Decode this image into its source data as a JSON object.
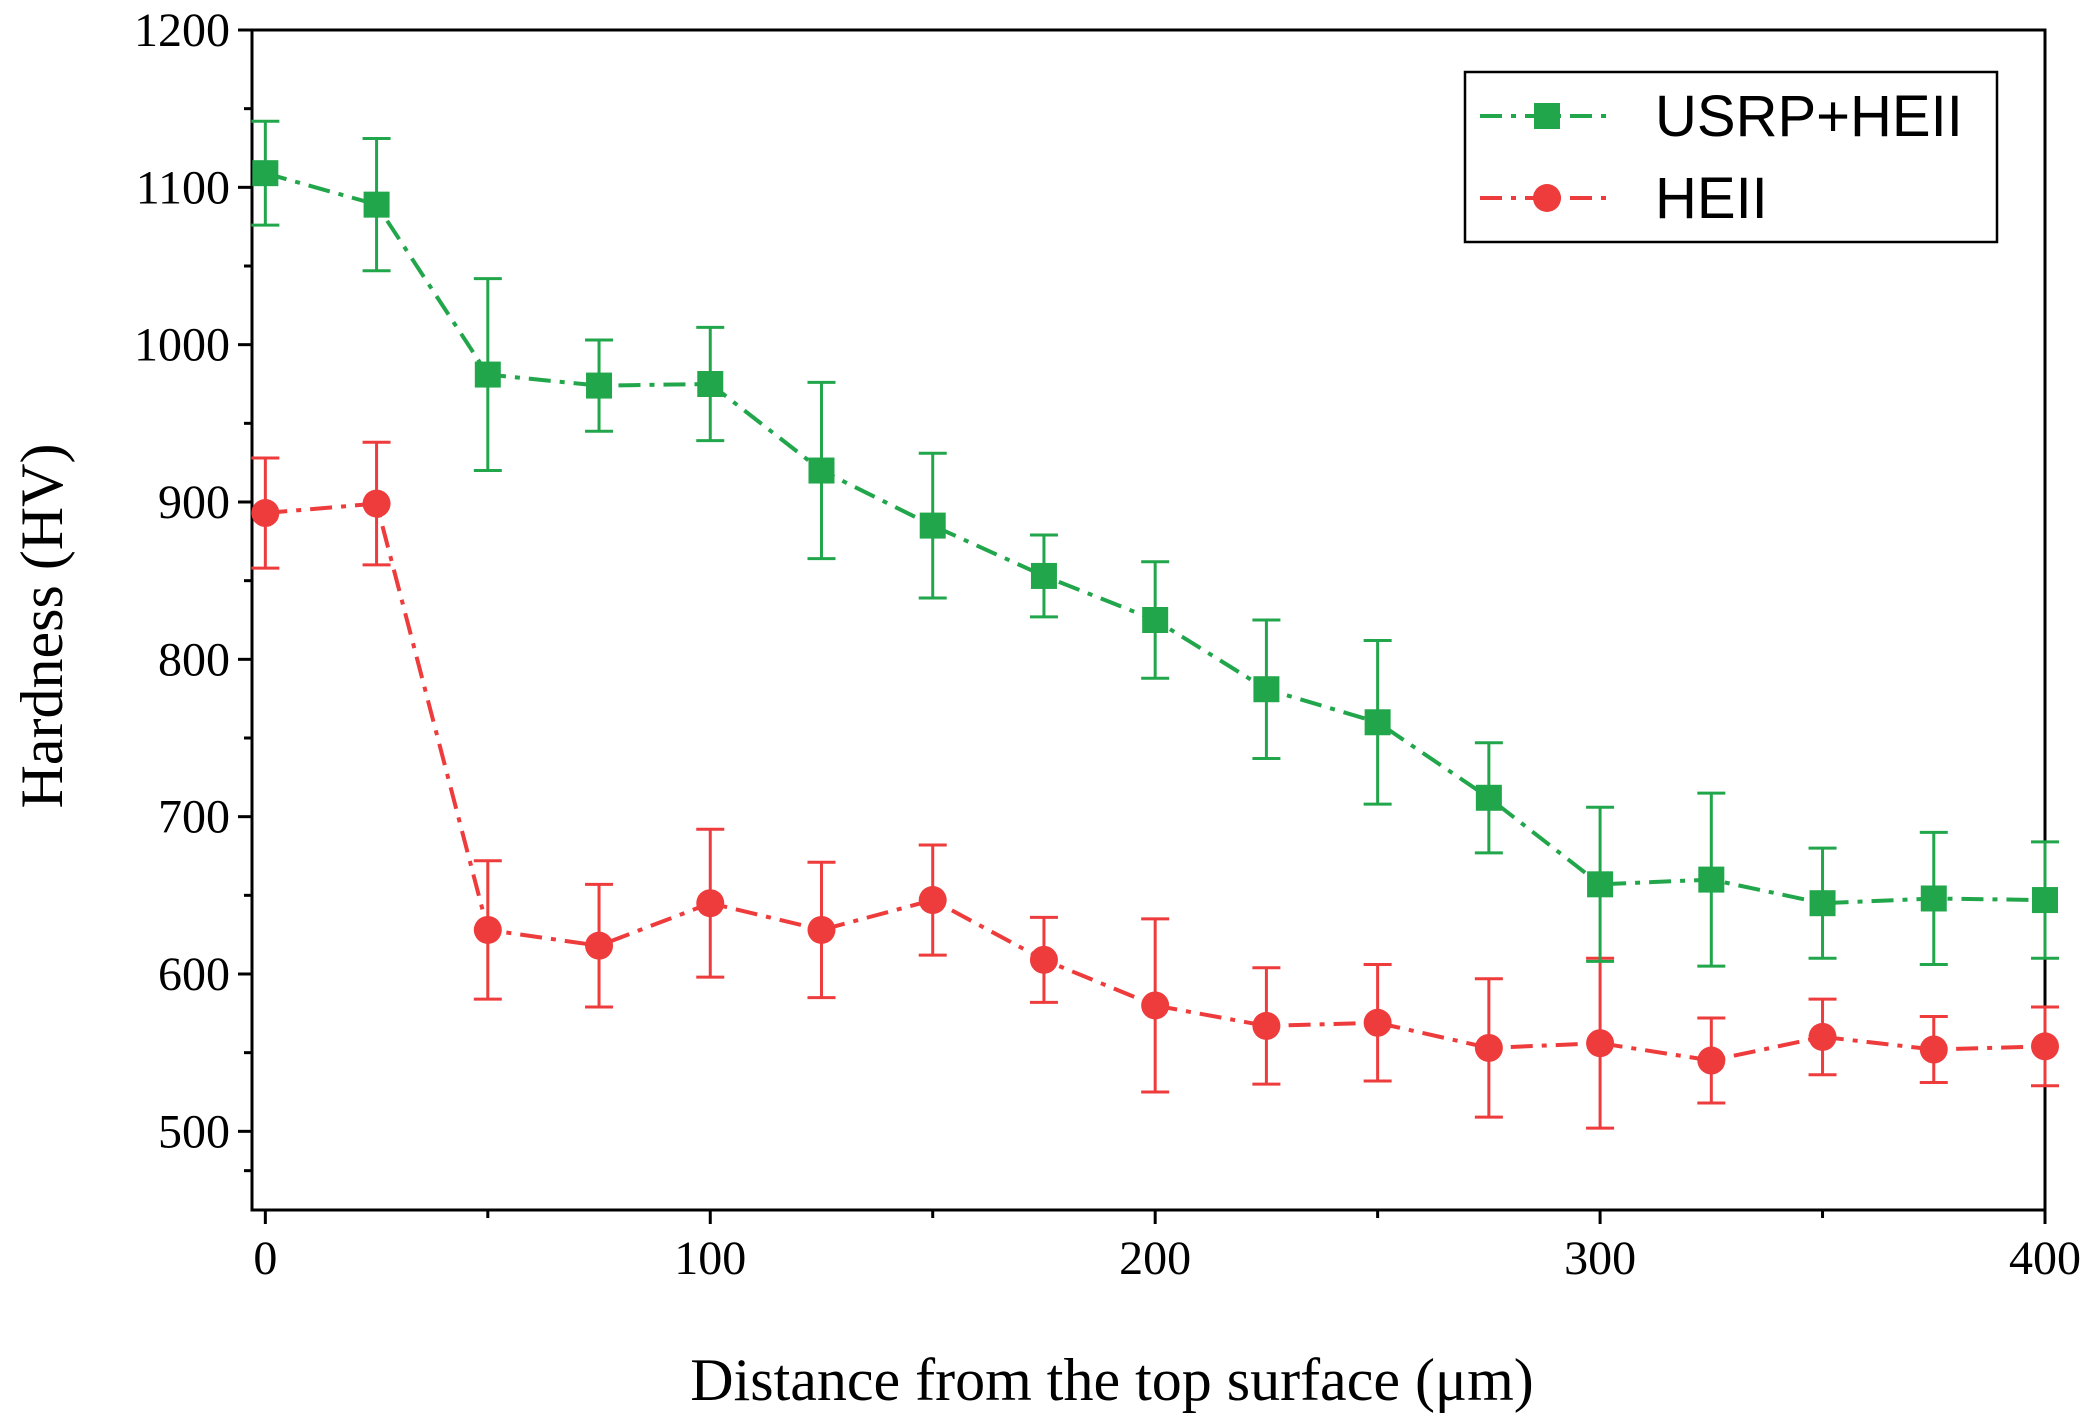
{
  "chart_data": {
    "type": "line",
    "title": "",
    "xlabel": "Distance from the top surface (μm)",
    "ylabel": "Hardness (HV)",
    "xlim": [
      -3,
      400
    ],
    "ylim": [
      450,
      1200
    ],
    "xticks": [
      0,
      100,
      200,
      300,
      400
    ],
    "xticks_minor": [
      50,
      150,
      250,
      350
    ],
    "yticks": [
      500,
      600,
      700,
      800,
      900,
      1000,
      1100,
      1200
    ],
    "x": [
      0,
      25,
      50,
      75,
      100,
      125,
      150,
      175,
      200,
      225,
      250,
      275,
      300,
      325,
      350,
      375,
      400
    ],
    "series": [
      {
        "name": "USRP+HEII",
        "color": "#22a64b",
        "marker": "square",
        "line_style": "dash-dot",
        "values": [
          1109,
          1089,
          981,
          974,
          975,
          920,
          885,
          853,
          825,
          781,
          760,
          712,
          657,
          660,
          645,
          648,
          647
        ],
        "err_upper": [
          1142,
          1131,
          1042,
          1003,
          1011,
          976,
          931,
          879,
          862,
          825,
          812,
          747,
          706,
          715,
          680,
          690,
          684
        ],
        "err_lower": [
          1076,
          1047,
          920,
          945,
          939,
          864,
          839,
          827,
          788,
          737,
          708,
          677,
          608,
          605,
          610,
          606,
          610
        ]
      },
      {
        "name": "HEII",
        "color": "#ee3b3b",
        "marker": "circle",
        "line_style": "dash-dot",
        "values": [
          893,
          899,
          628,
          618,
          645,
          628,
          647,
          609,
          580,
          567,
          569,
          553,
          556,
          545,
          560,
          552,
          554
        ],
        "err_upper": [
          928,
          938,
          672,
          657,
          692,
          671,
          682,
          636,
          635,
          604,
          606,
          597,
          610,
          572,
          584,
          573,
          579
        ],
        "err_lower": [
          858,
          860,
          584,
          579,
          598,
          585,
          612,
          582,
          525,
          530,
          532,
          509,
          502,
          518,
          536,
          531,
          529
        ]
      }
    ],
    "legend_position": "top-right",
    "grid": false
  }
}
